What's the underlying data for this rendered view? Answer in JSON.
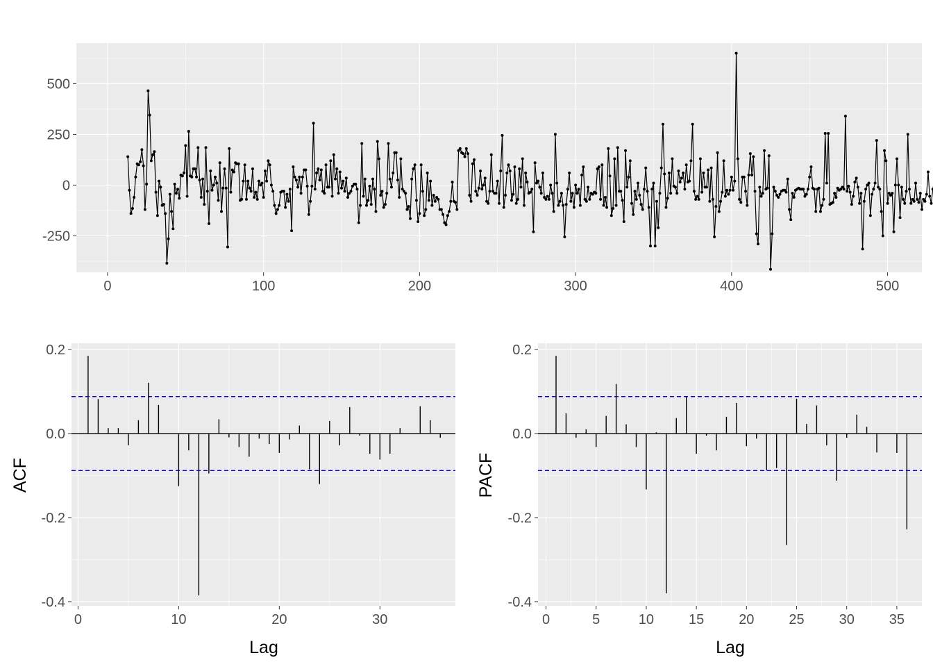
{
  "chart_data": [
    {
      "type": "line",
      "title": "",
      "xlabel": "",
      "ylabel": "",
      "xlim": [
        -20,
        522
      ],
      "ylim": [
        -430,
        700
      ],
      "x_ticks": [
        0,
        100,
        200,
        300,
        400,
        500
      ],
      "y_ticks": [
        -250,
        0,
        250,
        500
      ],
      "grid": true,
      "series": [
        {
          "x_start": 13,
          "points": true,
          "values": [
            140,
            -25,
            -140,
            -115,
            -60,
            40,
            105,
            100,
            115,
            175,
            95,
            -120,
            5,
            465,
            345,
            120,
            150,
            165,
            -35,
            -150,
            20,
            -10,
            -100,
            -95,
            -140,
            -385,
            -265,
            -45,
            -130,
            -215,
            5,
            -40,
            -20,
            -65,
            50,
            45,
            60,
            195,
            -55,
            265,
            45,
            40,
            80,
            80,
            40,
            185,
            25,
            -60,
            30,
            -95,
            185,
            -30,
            -190,
            70,
            -25,
            0,
            40,
            10,
            -75,
            110,
            -130,
            -15,
            80,
            -15,
            -305,
            180,
            -35,
            75,
            65,
            110,
            105,
            105,
            -75,
            -70,
            20,
            100,
            -70,
            20,
            -15,
            -30,
            80,
            -60,
            -35,
            -70,
            20,
            0,
            10,
            -60,
            70,
            20,
            120,
            100,
            0,
            -30,
            -100,
            -140,
            -120,
            -100,
            -35,
            -30,
            -30,
            -110,
            -45,
            -80,
            -20,
            -225,
            90,
            40,
            25,
            -10,
            40,
            -40,
            40,
            75,
            75,
            -5,
            -145,
            -80,
            -5,
            305,
            -20,
            60,
            80,
            25,
            75,
            -30,
            -40,
            100,
            -10,
            -10,
            120,
            -55,
            150,
            30,
            80,
            -40,
            65,
            -15,
            20,
            -30,
            35,
            -60,
            -40,
            -30,
            -5,
            5,
            5,
            -20,
            -185,
            -100,
            205,
            -55,
            30,
            -100,
            -75,
            -5,
            -95,
            30,
            -20,
            -130,
            215,
            130,
            -50,
            -30,
            -110,
            -95,
            -40,
            205,
            30,
            -10,
            60,
            160,
            160,
            25,
            -60,
            130,
            -20,
            -30,
            -40,
            -120,
            -105,
            -165,
            30,
            80,
            100,
            -75,
            -180,
            -140,
            100,
            -30,
            -150,
            -120,
            60,
            -75,
            20,
            -100,
            -50,
            -80,
            -60,
            -70,
            -120,
            -120,
            -145,
            -185,
            -195,
            -150,
            -130,
            -80,
            15,
            -80,
            -85,
            -120,
            170,
            180,
            160,
            155,
            140,
            180,
            155,
            -50,
            -80,
            105,
            125,
            -30,
            -50,
            -15,
            70,
            -20,
            0,
            35,
            -80,
            -90,
            -30,
            150,
            -30,
            -40,
            -40,
            20,
            -90,
            70,
            245,
            -110,
            -50,
            60,
            100,
            70,
            -75,
            -45,
            90,
            -90,
            -70,
            80,
            -10,
            130,
            -100,
            60,
            15,
            -40,
            -35,
            -20,
            -230,
            110,
            10,
            20,
            -10,
            -40,
            60,
            -60,
            -70,
            -55,
            -70,
            0,
            -40,
            -130,
            250,
            10,
            -100,
            -80,
            -40,
            -100,
            -255,
            -95,
            -20,
            60,
            -80,
            -40,
            -110,
            0,
            -40,
            -20,
            -100,
            50,
            90,
            -70,
            -80,
            -10,
            -70,
            -40,
            -45,
            -35,
            -40,
            80,
            90,
            -70,
            100,
            -100,
            -60,
            -110,
            180,
            45,
            -150,
            -115,
            130,
            -100,
            185,
            -30,
            -30,
            -75,
            -180,
            170,
            -10,
            40,
            120,
            -90,
            -145,
            -30,
            -70,
            10,
            -50,
            -95,
            -120,
            -20,
            85,
            -30,
            -110,
            -300,
            -20,
            10,
            -300,
            -80,
            -210,
            -40,
            85,
            300,
            55,
            -110,
            -65,
            60,
            -40,
            130,
            -5,
            -10,
            -40,
            70,
            15,
            35,
            60,
            -20,
            100,
            15,
            20,
            120,
            300,
            -30,
            -70,
            -55,
            -70,
            130,
            -35,
            60,
            -10,
            -10,
            75,
            -80,
            85,
            -70,
            -255,
            -105,
            160,
            -130,
            -80,
            -35,
            120,
            -55,
            -25,
            -45,
            -25,
            40,
            -25,
            20,
            650,
            130,
            -70,
            -85,
            40,
            40,
            -30,
            -100,
            50,
            155,
            50,
            140,
            -30,
            -240,
            -290,
            -10,
            -55,
            -40,
            170,
            -20,
            -15,
            145,
            -415,
            -240,
            -10,
            -30,
            -50,
            -60,
            -45,
            -30,
            -25,
            -25,
            -35,
            30,
            -120,
            -170,
            -40,
            -60,
            -25,
            -20,
            -15,
            -20,
            -20,
            -20,
            -55,
            -45,
            -20,
            40,
            90,
            -15,
            -20,
            -130,
            -20,
            -15,
            -130,
            -100,
            -70,
            255,
            10,
            255,
            -95,
            -90,
            -85,
            -40,
            -60,
            -15,
            -25,
            -20,
            -10,
            -20,
            340,
            -30,
            -5,
            -35,
            -95,
            -55,
            15,
            35,
            -10,
            -90,
            -40,
            -315,
            -80,
            -20,
            0,
            10,
            -150,
            -45,
            -20,
            10,
            220,
            -10,
            -20,
            -130,
            -250,
            170,
            120,
            -90,
            -40,
            -50,
            -40,
            -230,
            0,
            130,
            0,
            -160,
            -10,
            -70,
            -90,
            -30,
            250,
            -20,
            -90,
            -70,
            -80,
            10,
            -70,
            -85,
            -40,
            -120,
            -70,
            -80,
            -45,
            65,
            -55,
            -90,
            -20,
            20,
            -40,
            -20,
            -130,
            -80,
            -45,
            -80,
            -110,
            -90,
            -60,
            175,
            -70,
            -60,
            -60,
            10,
            -75,
            -105,
            -140,
            -50,
            -345,
            -150,
            -15,
            -80,
            -70,
            -90,
            -110,
            -115,
            35,
            15,
            -15,
            -100,
            -40,
            -45,
            -70,
            70,
            50,
            -30,
            50,
            40,
            -15,
            -40,
            -100,
            -60,
            60,
            15,
            40,
            20,
            -20,
            5,
            10,
            -30,
            -60,
            -40,
            -85,
            -70,
            -40,
            -70,
            -20,
            0,
            -10,
            0,
            -20,
            -90,
            -30,
            -10,
            -70,
            -65,
            -70,
            60,
            -35,
            -30,
            -75,
            -80,
            -40,
            -85,
            -90,
            130,
            -90,
            -50,
            140,
            -60,
            -70,
            -85,
            -65,
            30,
            -20,
            -30,
            -90,
            -85,
            60,
            -60,
            -110,
            -110,
            -70,
            -40,
            -60,
            -85,
            -20,
            -40,
            -80,
            -10,
            -15,
            -35,
            -60,
            -15,
            -35,
            25,
            -80,
            75,
            30,
            75,
            -60,
            -100,
            -80,
            30,
            -90,
            -40,
            -45,
            -40,
            -65,
            -80,
            50,
            -60,
            -95,
            -40,
            -60,
            -10,
            65,
            -40,
            40,
            -5,
            -55,
            -60,
            -5,
            -50,
            -25,
            25,
            -90,
            -60,
            -15,
            55,
            -55,
            25,
            35,
            -40,
            45,
            -30,
            -10,
            -35,
            -60,
            -40,
            -35,
            -60,
            -40,
            5,
            40,
            -65,
            -30,
            -10,
            -95,
            -60,
            -30,
            -50,
            -20,
            -100,
            -30,
            -60,
            -70,
            -30,
            -60,
            -40,
            -55,
            -15,
            -30,
            -100,
            -25,
            35,
            -100,
            -70,
            -10,
            35,
            -15,
            -35,
            -65,
            -65,
            -70,
            -60,
            -35,
            -10,
            -15,
            -20,
            -70,
            -60,
            -90,
            -80,
            -60,
            -30,
            -35,
            -20,
            -40,
            -25,
            -30,
            -70,
            -85,
            -30,
            -25,
            -40,
            -60,
            -50,
            -60,
            -40,
            -70,
            -45,
            -55,
            -30,
            -45,
            -40,
            -45,
            -45,
            -65,
            -60,
            -50,
            -35,
            -60,
            -70,
            -45,
            -35,
            -55,
            -50,
            -60,
            -60,
            -40,
            -30,
            -50,
            -35,
            -30,
            -45,
            -35,
            -15,
            -55,
            -60,
            -50,
            -60,
            -30,
            -45,
            -55,
            -40,
            -25,
            -25,
            -15,
            -35
          ]
        }
      ]
    },
    {
      "type": "bar",
      "title": "",
      "xlabel": "Lag",
      "ylabel": "ACF",
      "xlim": [
        -0.65,
        37.5
      ],
      "ylim": [
        -0.41,
        0.215
      ],
      "x_ticks": [
        0,
        10,
        20,
        30
      ],
      "y_ticks": [
        -0.4,
        -0.2,
        0.0,
        0.2
      ],
      "y_tick_labels": [
        "-0.4",
        "-0.2",
        "0.0",
        "0.2"
      ],
      "confidence_band": 0.088,
      "grid": true,
      "lags": [
        1,
        2,
        3,
        4,
        5,
        6,
        7,
        8,
        9,
        10,
        11,
        12,
        13,
        14,
        15,
        16,
        17,
        18,
        19,
        20,
        21,
        22,
        23,
        24,
        25,
        26,
        27,
        28,
        29,
        30,
        31,
        32,
        33,
        34,
        35,
        36
      ],
      "values": [
        0.185,
        0.082,
        0.013,
        0.013,
        -0.028,
        0.032,
        0.121,
        0.068,
        0.0,
        -0.125,
        -0.04,
        -0.385,
        -0.095,
        0.034,
        -0.009,
        -0.032,
        -0.055,
        -0.012,
        -0.025,
        -0.046,
        -0.014,
        0.019,
        -0.085,
        -0.12,
        0.03,
        -0.028,
        0.063,
        -0.005,
        -0.048,
        -0.062,
        -0.048,
        0.013,
        0.0,
        0.065,
        0.032,
        -0.01
      ]
    },
    {
      "type": "bar",
      "title": "",
      "xlabel": "Lag",
      "ylabel": "PACF",
      "xlim": [
        -0.8,
        37.5
      ],
      "ylim": [
        -0.41,
        0.215
      ],
      "x_ticks": [
        0,
        5,
        10,
        15,
        20,
        25,
        30,
        35
      ],
      "y_ticks": [
        -0.4,
        -0.2,
        0.0,
        0.2
      ],
      "y_tick_labels": [
        "-0.4",
        "-0.2",
        "0.0",
        "0.2"
      ],
      "confidence_band": 0.088,
      "grid": true,
      "lags": [
        1,
        2,
        3,
        4,
        5,
        6,
        7,
        8,
        9,
        10,
        11,
        12,
        13,
        14,
        15,
        16,
        17,
        18,
        19,
        20,
        21,
        22,
        23,
        24,
        25,
        26,
        27,
        28,
        29,
        30,
        31,
        32,
        33,
        34,
        35,
        36
      ],
      "values": [
        0.185,
        0.048,
        -0.01,
        0.01,
        -0.032,
        0.042,
        0.118,
        0.022,
        -0.032,
        -0.133,
        0.003,
        -0.38,
        0.037,
        0.087,
        -0.048,
        -0.005,
        -0.04,
        0.04,
        0.073,
        -0.03,
        -0.012,
        -0.088,
        -0.082,
        -0.265,
        0.083,
        0.023,
        0.067,
        -0.028,
        -0.112,
        -0.01,
        0.045,
        0.016,
        -0.045,
        0.0,
        -0.046,
        -0.228
      ]
    }
  ]
}
